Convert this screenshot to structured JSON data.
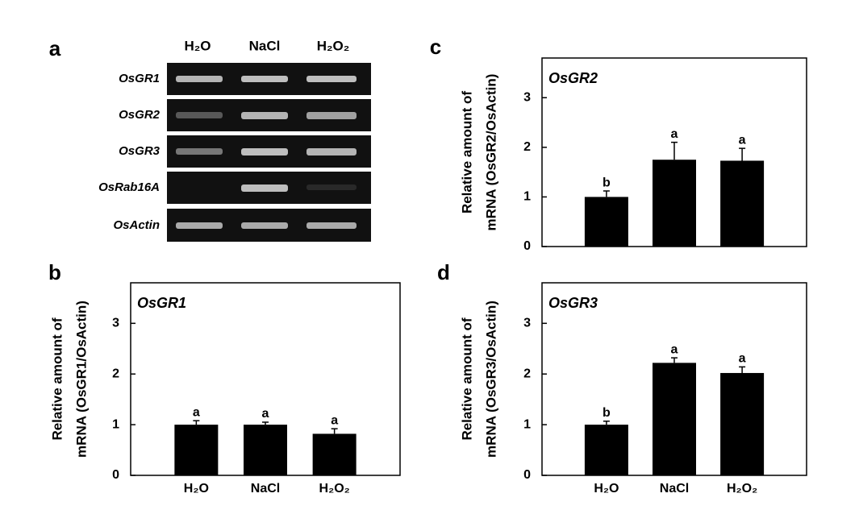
{
  "gel": {
    "panel": "a",
    "lanes": [
      "H₂O",
      "NaCl",
      "H₂O₂"
    ],
    "genes": [
      "OsGR1",
      "OsGR2",
      "OsGR3",
      "OsRab16A",
      "OsActin"
    ]
  },
  "chart_data": [
    {
      "type": "bar",
      "panel": "b",
      "title": "OsGR1",
      "ylabel": [
        "Relative amount of",
        "mRNA (OsGR1/OsActin)"
      ],
      "categories": [
        "H₂O",
        "NaCl",
        "H₂O₂"
      ],
      "values": [
        1.0,
        1.0,
        0.82
      ],
      "errors": [
        0.08,
        0.05,
        0.1
      ],
      "letters": [
        "a",
        "a",
        "a"
      ],
      "color": "#000000",
      "ylim": [
        0,
        3.8
      ],
      "yticks": [
        0,
        1,
        2,
        3
      ]
    },
    {
      "type": "bar",
      "panel": "c",
      "title": "OsGR2",
      "ylabel": [
        "Relative amount of",
        "mRNA (OsGR2/OsActin)"
      ],
      "categories": [
        null,
        null,
        null
      ],
      "values": [
        1.0,
        1.75,
        1.73
      ],
      "errors": [
        0.12,
        0.35,
        0.25
      ],
      "letters": [
        "b",
        "a",
        "a"
      ],
      "color": "#000000",
      "ylim": [
        0,
        3.8
      ],
      "yticks": [
        0,
        1,
        2,
        3
      ]
    },
    {
      "type": "bar",
      "panel": "d",
      "title": "OsGR3",
      "ylabel": [
        "Relative amount of",
        "mRNA (OsGR3/OsActin)"
      ],
      "categories": [
        "H₂O",
        "NaCl",
        "H₂O₂"
      ],
      "values": [
        1.0,
        2.22,
        2.02
      ],
      "errors": [
        0.07,
        0.1,
        0.12
      ],
      "letters": [
        "b",
        "a",
        "a"
      ],
      "color": "#000000",
      "ylim": [
        0,
        3.8
      ],
      "yticks": [
        0,
        1,
        2,
        3
      ]
    }
  ]
}
